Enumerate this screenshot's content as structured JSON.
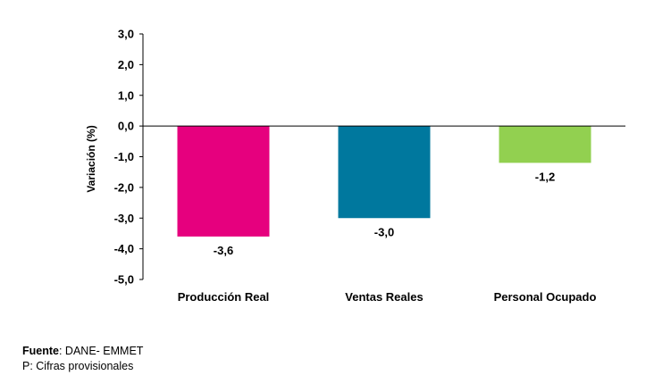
{
  "chart_data": {
    "type": "bar",
    "categories": [
      "Producción Real",
      "Ventas Reales",
      "Personal Ocupado"
    ],
    "values": [
      -3.6,
      -3.0,
      -1.2
    ],
    "value_labels": [
      "-3,6",
      "-3,0",
      "-1,2"
    ],
    "colors": [
      "#E6007E",
      "#00789E",
      "#92D050"
    ],
    "ylabel": "Variación (%)",
    "ylim": [
      -5.0,
      3.0
    ],
    "yticks": [
      3.0,
      2.0,
      1.0,
      0.0,
      -1.0,
      -2.0,
      -3.0,
      -4.0,
      -5.0
    ],
    "ytick_labels": [
      "3,0",
      "2,0",
      "1,0",
      "0,0",
      "-1,0",
      "-2,0",
      "-3,0",
      "-4,0",
      "-5,0"
    ],
    "grid": false,
    "legend": "none"
  },
  "footer": {
    "source_label": "Fuente",
    "source_text": ": DANE- EMMET",
    "note": "P: Cifras provisionales"
  }
}
